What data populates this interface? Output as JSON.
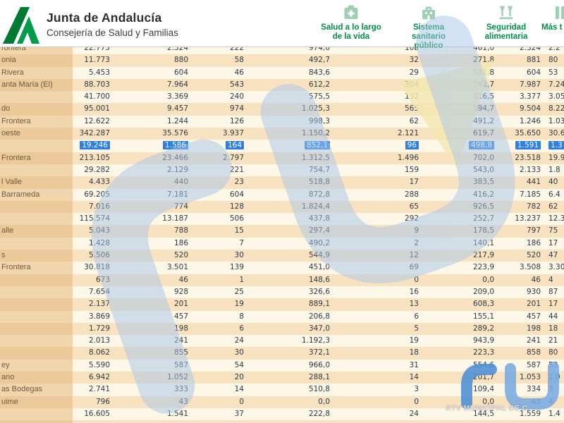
{
  "header": {
    "title": "Junta de Andalucía",
    "subtitle": "Consejería de Salud y Familias",
    "nav": [
      {
        "label": "Salud a lo largo\nde la vida",
        "icon": "health-life-book-icon"
      },
      {
        "label": "Sistema\nsanitario\npúblico",
        "icon": "public-health-building-icon"
      },
      {
        "label": "Seguridad\nalimentaria",
        "icon": "food-safety-flasks-icon"
      },
      {
        "label": "Más t",
        "icon": "more-topics-icon"
      }
    ]
  },
  "watermark": {
    "caption": "RTV MUNICIPAL DE C"
  },
  "colors": {
    "brand_green": "#008f46",
    "logo_green_dark": "#007a33",
    "logo_green_light": "#009c49",
    "icon_green": "#9fd0b3",
    "row_cream": "#fdf7e7",
    "row_peach": "#f9e2c0",
    "name_cream": "#f1d5ad",
    "name_peach": "#ebc998",
    "selection_blue": "#2e7fe0",
    "watermark_blue_light": "#a9c7e8",
    "watermark_blue_strong": "#4c8fd6",
    "watermark_blue_soft": "#79abe2",
    "watermark_yellow": "#f3e8b0"
  },
  "table": {
    "rows": [
      {
        "name": "rontera",
        "values": [
          "22.773",
          "2.324",
          "222",
          "974,0",
          "105",
          "461,0",
          "2.324",
          "2.2"
        ],
        "highlight": false
      },
      {
        "name": "onia",
        "values": [
          "11.773",
          "880",
          "58",
          "492,7",
          "32",
          "271,8",
          "881",
          "80"
        ],
        "highlight": false
      },
      {
        "name": "Rivera",
        "values": [
          "5.453",
          "604",
          "46",
          "843,6",
          "29",
          "531,8",
          "604",
          "53"
        ],
        "highlight": false
      },
      {
        "name": "anta María (El)",
        "values": [
          "88.703",
          "7.964",
          "543",
          "612,2",
          "304",
          "342,7",
          "7.987",
          "7.24"
        ],
        "highlight": false
      },
      {
        "name": "",
        "values": [
          "41.700",
          "3.369",
          "240",
          "575,5",
          "132",
          "316,5",
          "3.377",
          "3.05"
        ],
        "highlight": false
      },
      {
        "name": "do",
        "values": [
          "95.001",
          "9.457",
          "974",
          "1.025,3",
          "565",
          "594,7",
          "9.504",
          "8.22"
        ],
        "highlight": false
      },
      {
        "name": "Frontera",
        "values": [
          "12.622",
          "1.244",
          "126",
          "998,3",
          "62",
          "491,2",
          "1.246",
          "1.03"
        ],
        "highlight": false
      },
      {
        "name": "oeste",
        "values": [
          "342.287",
          "35.576",
          "3.937",
          "1.150,2",
          "2.121",
          "619,7",
          "35.650",
          "30.6"
        ],
        "highlight": false
      },
      {
        "name": "",
        "values": [
          "19.246",
          "1.586",
          "164",
          "852,1",
          "96",
          "498,8",
          "1.591",
          "1.3"
        ],
        "highlight": true
      },
      {
        "name": "Frontera",
        "values": [
          "213.105",
          "23.466",
          "2.797",
          "1.312,5",
          "1.496",
          "702,0",
          "23.518",
          "19.9"
        ],
        "highlight": false
      },
      {
        "name": "",
        "values": [
          "29.282",
          "2.129",
          "221",
          "754,7",
          "159",
          "543,0",
          "2.133",
          "1.8"
        ],
        "highlight": false
      },
      {
        "name": "l Valle",
        "values": [
          "4.433",
          "440",
          "23",
          "518,8",
          "17",
          "383,5",
          "441",
          "40"
        ],
        "highlight": false
      },
      {
        "name": "Barrameda",
        "values": [
          "69.205",
          "7.181",
          "604",
          "872,8",
          "288",
          "416,2",
          "7.185",
          "6.4"
        ],
        "highlight": false
      },
      {
        "name": "",
        "values": [
          "7.016",
          "774",
          "128",
          "1.824,4",
          "65",
          "926,5",
          "782",
          "62"
        ],
        "highlight": false
      },
      {
        "name": "",
        "values": [
          "115.574",
          "13.187",
          "506",
          "437,8",
          "292",
          "252,7",
          "13.237",
          "12.3"
        ],
        "highlight": false
      },
      {
        "name": "alle",
        "values": [
          "5.043",
          "788",
          "15",
          "297,4",
          "9",
          "178,5",
          "797",
          "75"
        ],
        "highlight": false
      },
      {
        "name": "",
        "values": [
          "1.428",
          "186",
          "7",
          "490,2",
          "2",
          "140,1",
          "186",
          "17"
        ],
        "highlight": false
      },
      {
        "name": "s",
        "values": [
          "5.506",
          "520",
          "30",
          "544,9",
          "12",
          "217,9",
          "520",
          "47"
        ],
        "highlight": false
      },
      {
        "name": "Frontera",
        "values": [
          "30.818",
          "3.501",
          "139",
          "451,0",
          "69",
          "223,9",
          "3.508",
          "3.30"
        ],
        "highlight": false
      },
      {
        "name": "",
        "values": [
          "673",
          "46",
          "1",
          "148,6",
          "0",
          "0,0",
          "46",
          "4"
        ],
        "highlight": false
      },
      {
        "name": "",
        "values": [
          "7.654",
          "928",
          "25",
          "326,6",
          "16",
          "209,0",
          "930",
          "87"
        ],
        "highlight": false
      },
      {
        "name": "",
        "values": [
          "2.137",
          "201",
          "19",
          "889,1",
          "13",
          "608,3",
          "201",
          "17"
        ],
        "highlight": false
      },
      {
        "name": "",
        "values": [
          "3.869",
          "457",
          "8",
          "206,8",
          "6",
          "155,1",
          "457",
          "44"
        ],
        "highlight": false
      },
      {
        "name": "",
        "values": [
          "1.729",
          "198",
          "6",
          "347,0",
          "5",
          "289,2",
          "198",
          "18"
        ],
        "highlight": false
      },
      {
        "name": "",
        "values": [
          "2.013",
          "241",
          "24",
          "1.192,3",
          "19",
          "943,9",
          "241",
          "21"
        ],
        "highlight": false
      },
      {
        "name": "",
        "values": [
          "8.062",
          "855",
          "30",
          "372,1",
          "18",
          "223,3",
          "858",
          "80"
        ],
        "highlight": false
      },
      {
        "name": "ey",
        "values": [
          "5.590",
          "587",
          "54",
          "966,0",
          "31",
          "554,6",
          "587",
          "53"
        ],
        "highlight": false
      },
      {
        "name": "ano",
        "values": [
          "6.942",
          "1.052",
          "20",
          "288,1",
          "14",
          "201,7",
          "1.053",
          "1.0"
        ],
        "highlight": false
      },
      {
        "name": "as Bodegas",
        "values": [
          "2.741",
          "333",
          "14",
          "510,8",
          "3",
          "109,4",
          "334",
          "3"
        ],
        "highlight": false
      },
      {
        "name": "uime",
        "values": [
          "796",
          "43",
          "0",
          "0,0",
          "0",
          "0,0",
          "43",
          "4"
        ],
        "highlight": false
      },
      {
        "name": "",
        "values": [
          "16.605",
          "1.541",
          "37",
          "222,8",
          "24",
          "144,5",
          "1.559",
          "1.4"
        ],
        "highlight": false
      },
      {
        "name": "",
        "values": [
          "",
          "",
          "",
          "",
          "",
          "",
          "",
          ""
        ],
        "highlight": false
      }
    ]
  }
}
